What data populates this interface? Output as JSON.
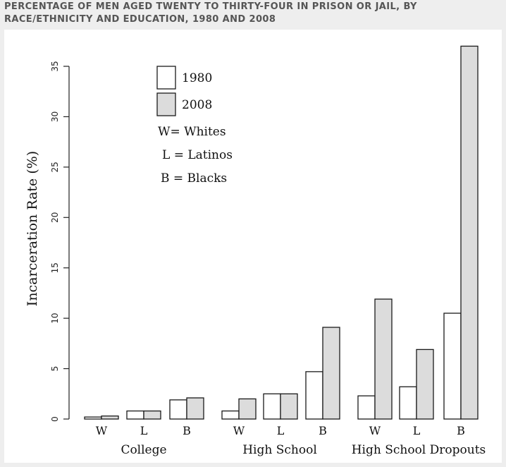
{
  "page": {
    "title": "PERCENTAGE OF MEN AGED TWENTY TO THIRTY-FOUR IN PRISON OR JAIL, BY RACE/ETHNICITY AND EDUCATION, 1980 AND 2008"
  },
  "chart_data": {
    "type": "bar",
    "title": "",
    "xlabel": "",
    "ylabel": "Incarceration Rate (%)",
    "ylim": [
      0,
      35
    ],
    "yticks": [
      0,
      5,
      10,
      15,
      20,
      25,
      30,
      35
    ],
    "grid": false,
    "legend_position": "top-left",
    "groups": [
      "College",
      "High School",
      "High School Dropouts"
    ],
    "categories": [
      "W",
      "L",
      "B",
      "W",
      "L",
      "B",
      "W",
      "L",
      "B"
    ],
    "series": [
      {
        "name": "1980",
        "color": "#ffffff",
        "values": [
          0.2,
          0.8,
          1.9,
          0.8,
          2.5,
          4.7,
          2.3,
          3.2,
          10.5
        ]
      },
      {
        "name": "2008",
        "color": "#dcdcdc",
        "values": [
          0.3,
          0.8,
          2.1,
          2.0,
          2.5,
          9.1,
          11.9,
          6.9,
          37.0
        ]
      }
    ],
    "legend_notes": [
      "W= Whites",
      "L = Latinos",
      "B = Blacks"
    ]
  }
}
